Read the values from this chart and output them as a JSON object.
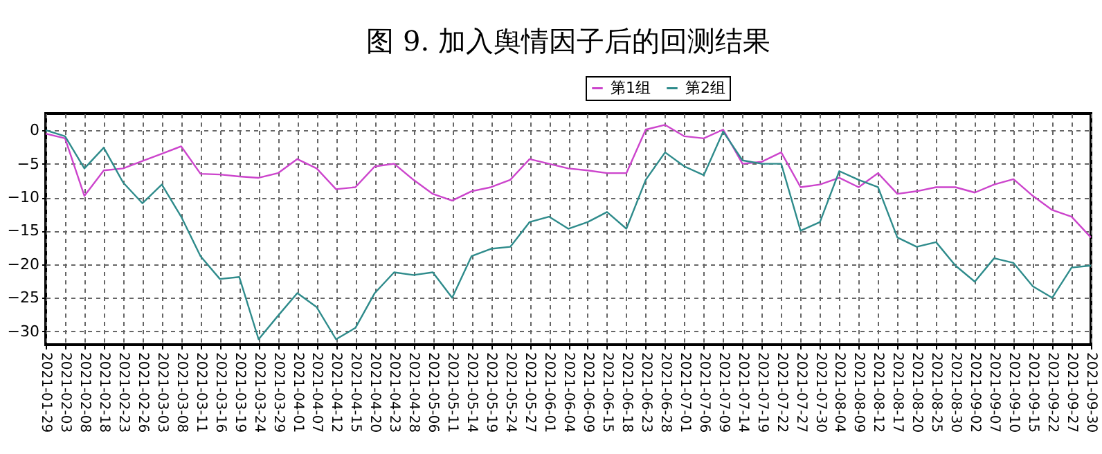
{
  "chart_data": {
    "type": "line",
    "title": "图 9. 加入舆情因子后的回测结果",
    "categories": [
      "2021-01-29",
      "2021-02-03",
      "2021-02-08",
      "2021-02-18",
      "2021-02-23",
      "2021-02-26",
      "2021-03-03",
      "2021-03-08",
      "2021-03-11",
      "2021-03-16",
      "2021-03-19",
      "2021-03-24",
      "2021-03-29",
      "2021-04-01",
      "2021-04-07",
      "2021-04-12",
      "2021-04-15",
      "2021-04-20",
      "2021-04-23",
      "2021-04-28",
      "2021-05-06",
      "2021-05-11",
      "2021-05-14",
      "2021-05-19",
      "2021-05-24",
      "2021-05-27",
      "2021-06-01",
      "2021-06-04",
      "2021-06-09",
      "2021-06-15",
      "2021-06-18",
      "2021-06-23",
      "2021-06-28",
      "2021-07-01",
      "2021-07-06",
      "2021-07-09",
      "2021-07-14",
      "2021-07-19",
      "2021-07-22",
      "2021-07-27",
      "2021-07-30",
      "2021-08-04",
      "2021-08-09",
      "2021-08-12",
      "2021-08-17",
      "2021-08-20",
      "2021-08-25",
      "2021-08-30",
      "2021-09-02",
      "2021-09-07",
      "2021-09-10",
      "2021-09-15",
      "2021-09-22",
      "2021-09-27",
      "2021-09-30"
    ],
    "series": [
      {
        "name": "第1组",
        "color": "#cc44cc",
        "values": [
          -0.5,
          -1.2,
          -9.8,
          -6,
          -5.7,
          -4.6,
          -3.5,
          -2.4,
          -6.5,
          -6.6,
          -6.9,
          -7.1,
          -6.4,
          -4.3,
          -5.7,
          -8.8,
          -8.5,
          -5.4,
          -5,
          -7.4,
          -9.5,
          -10.5,
          -9.1,
          -8.5,
          -7.4,
          -4.3,
          -5,
          -5.7,
          -6,
          -6.4,
          -6.4,
          0.1,
          0.8,
          -0.9,
          -1.2,
          0.1,
          -5,
          -4.7,
          -3.3,
          -8.5,
          -8.1,
          -7.1,
          -8.5,
          -6.4,
          -9.5,
          -9.1,
          -8.5,
          -8.5,
          -9.3,
          -8.1,
          -7.3,
          -9.8,
          -11.9,
          -12.9,
          -16
        ]
      },
      {
        "name": "第2组",
        "color": "#2e8b8b",
        "values": [
          0,
          -0.9,
          -5.7,
          -2.6,
          -7.8,
          -10.9,
          -8.1,
          -12.9,
          -18.8,
          -22.2,
          -21.9,
          -31.2,
          -27.7,
          -24.3,
          -26.4,
          -31.2,
          -29.5,
          -24.3,
          -21.2,
          -21.6,
          -21.2,
          -25,
          -18.8,
          -17.7,
          -17.4,
          -13.7,
          -12.9,
          -14.7,
          -13.7,
          -12.2,
          -14.7,
          -7.4,
          -3.3,
          -5.4,
          -6.7,
          -0.2,
          -4.5,
          -5,
          -5,
          -15,
          -13.7,
          -6.1,
          -7.4,
          -8.5,
          -16,
          -17.4,
          -16.7,
          -20.2,
          -22.6,
          -19.1,
          -19.8,
          -23.3,
          -25,
          -20.5,
          -20.2
        ]
      }
    ],
    "ylim": [
      -32,
      2.5
    ],
    "yticks": [
      0,
      -5,
      -10,
      -15,
      -20,
      -25,
      -30
    ],
    "grid": true,
    "legend": "top",
    "marker": "none",
    "line_style": "solid"
  }
}
